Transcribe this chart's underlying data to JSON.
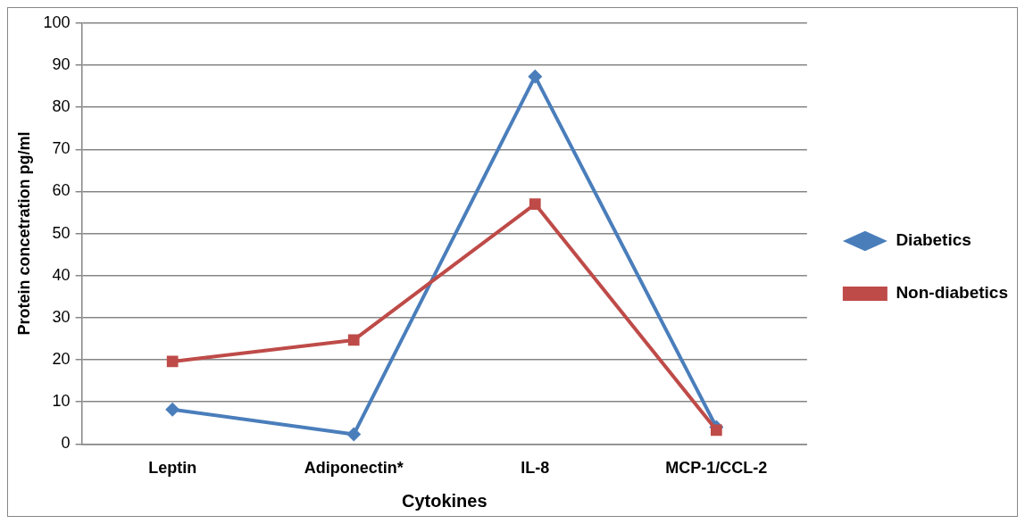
{
  "chart_data": {
    "type": "line",
    "xlabel": "Cytokines",
    "ylabel": "Protein concetration pg/ml",
    "categories": [
      "Leptin",
      "Adiponectin*",
      "IL-8",
      "MCP-1/CCL-2"
    ],
    "series": [
      {
        "name": "Diabetics",
        "color": "#4a7ebb",
        "marker": "diamond",
        "values": [
          8.2,
          2.3,
          87.3,
          4
        ]
      },
      {
        "name": "Non-diabetics",
        "color": "#be4b48",
        "marker": "square",
        "values": [
          19.6,
          24.7,
          57,
          3.3
        ]
      }
    ],
    "ylim": [
      0,
      100
    ],
    "yticks": [
      0,
      10,
      20,
      30,
      40,
      50,
      60,
      70,
      80,
      90,
      100
    ],
    "grid": "y",
    "legend": "right",
    "line_style": "solid"
  }
}
